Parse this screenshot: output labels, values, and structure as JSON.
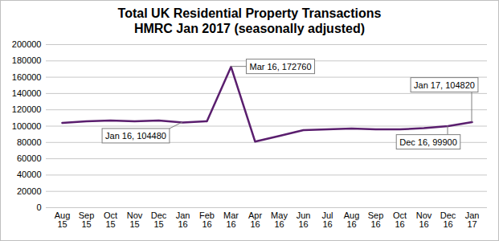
{
  "chart_data": {
    "type": "line",
    "title": "Total UK Residential Property Transactions",
    "subtitle": "HMRC Jan 2017 (seasonally adjusted)",
    "categories": [
      "Aug 15",
      "Sep 15",
      "Oct 15",
      "Nov 15",
      "Dec 15",
      "Jan 16",
      "Feb 16",
      "Mar 16",
      "Apr 16",
      "May 16",
      "Jun 16",
      "Jul 16",
      "Aug 16",
      "Sep 16",
      "Oct 16",
      "Nov 16",
      "Dec 16",
      "Jan 17"
    ],
    "values": [
      104000,
      106000,
      107000,
      106000,
      107000,
      104480,
      106000,
      172760,
      81000,
      88000,
      95000,
      96000,
      97000,
      96000,
      96000,
      97500,
      99900,
      104820
    ],
    "color": "#5a1e6e",
    "ylim": [
      0,
      200000
    ],
    "yticks": [
      0,
      20000,
      40000,
      60000,
      80000,
      100000,
      120000,
      140000,
      160000,
      180000,
      200000
    ],
    "grid": true,
    "annotations": [
      {
        "x": "Mar 16",
        "text": "Mar 16, 172760"
      },
      {
        "x": "Jan 16",
        "text": "Jan 16, 104480"
      },
      {
        "x": "Dec 16",
        "text": "Dec 16, 99900"
      },
      {
        "x": "Jan 17",
        "text": "Jan 17, 104820"
      }
    ]
  }
}
